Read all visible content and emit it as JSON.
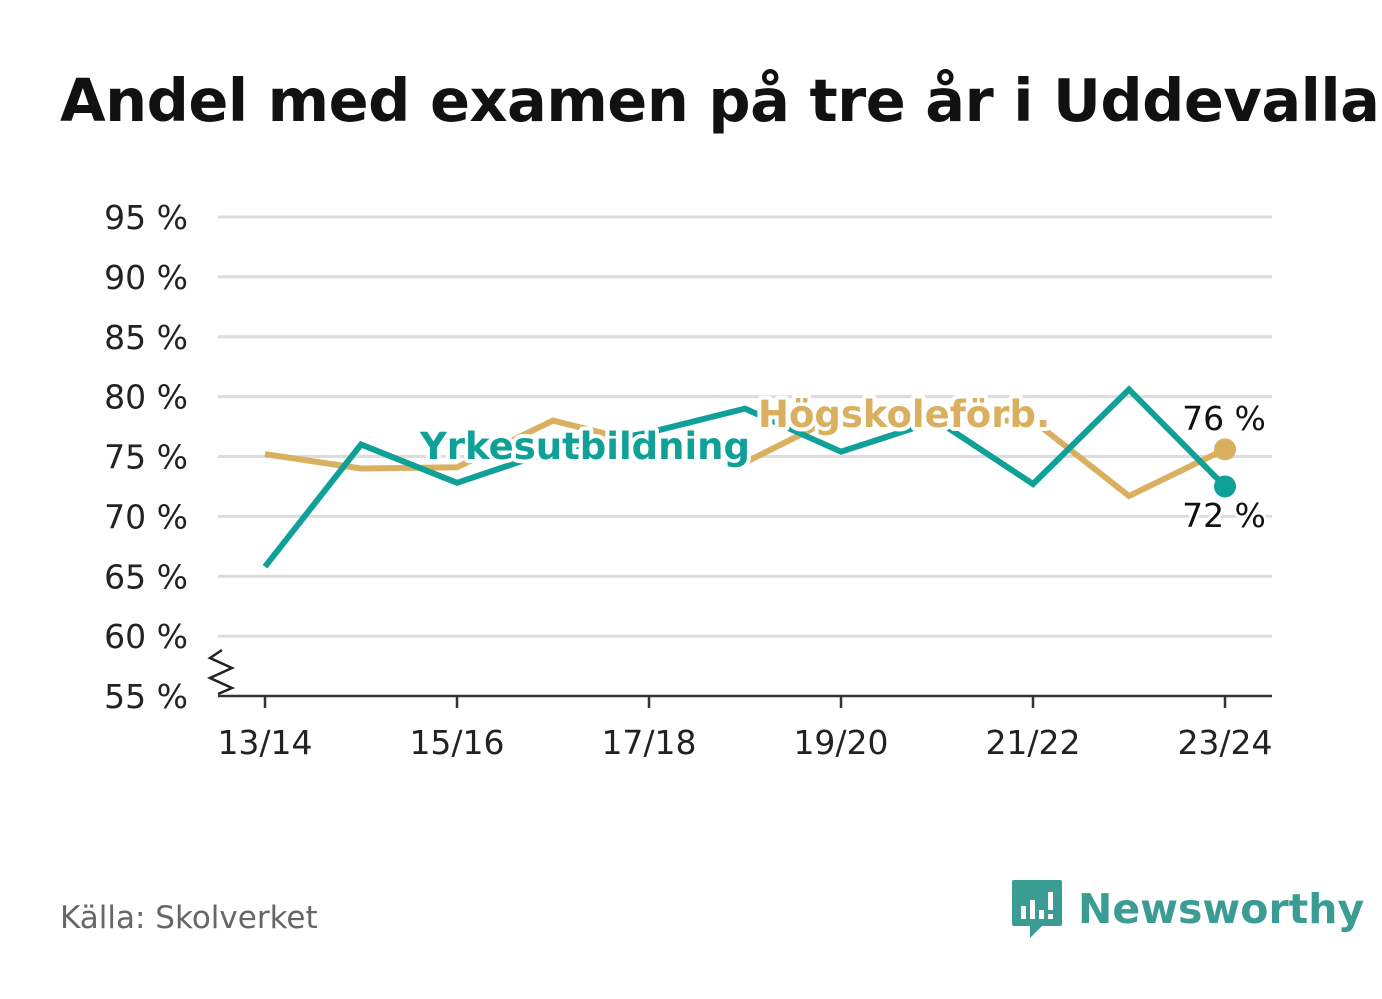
{
  "title": "Andel med examen på tre år i Uddevalla",
  "source": "Källa: Skolverket",
  "brand": {
    "name": "Newsworthy",
    "icon": "newsworthy-bar-chart-icon",
    "color": "#3b9c94"
  },
  "chart_data": {
    "type": "line",
    "title": "Andel med examen på tre år i Uddevalla",
    "x": [
      "13/14",
      "14/15",
      "15/16",
      "16/17",
      "17/18",
      "18/19",
      "19/20",
      "20/21",
      "21/22",
      "22/23",
      "23/24"
    ],
    "x_tick_labels": [
      "13/14",
      "15/16",
      "17/18",
      "19/20",
      "21/22",
      "23/24"
    ],
    "y_ticks": [
      55,
      60,
      65,
      70,
      75,
      80,
      85,
      90,
      95
    ],
    "y_tick_labels": [
      "55 %",
      "60 %",
      "65 %",
      "70 %",
      "75 %",
      "80 %",
      "85 %",
      "90 %",
      "95 %"
    ],
    "ylim": [
      55,
      95
    ],
    "y_axis_break": true,
    "grid": true,
    "series": [
      {
        "name": "Högskoleförb.",
        "color": "#d9b060",
        "values": [
          75.2,
          74.0,
          74.1,
          78.0,
          76.0,
          74.5,
          78.5,
          78.0,
          78.0,
          71.7,
          75.6
        ],
        "end_label": "76 %"
      },
      {
        "name": "Yrkesutbildning",
        "color": "#0fa197",
        "values": [
          65.8,
          76.0,
          72.8,
          75.5,
          77.0,
          79.0,
          75.4,
          78.0,
          72.7,
          80.6,
          72.5
        ],
        "end_label": "72 %"
      }
    ]
  }
}
